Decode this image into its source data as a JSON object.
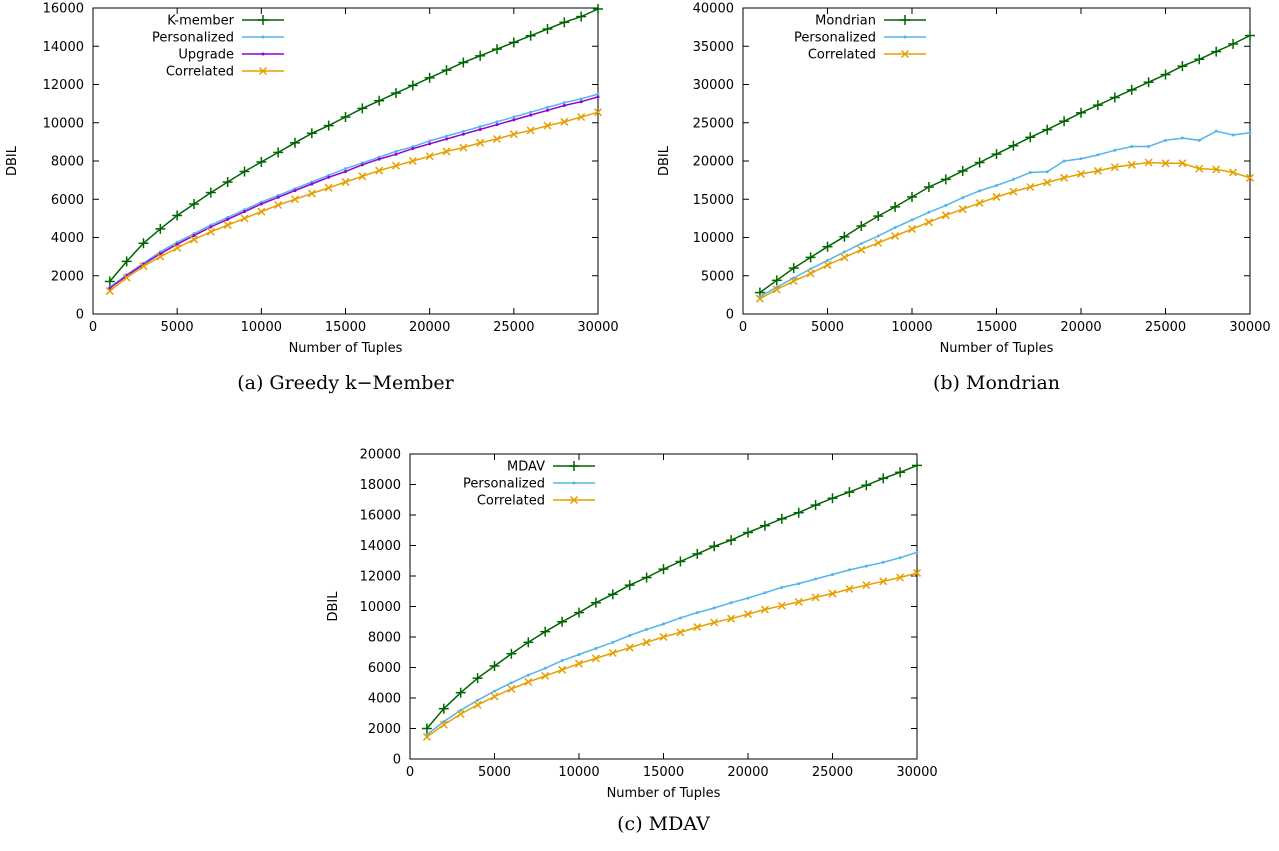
{
  "chart_data": [
    {
      "type": "line",
      "caption": "(a) Greedy k−Member",
      "xlabel": "Number of Tuples",
      "ylabel": "DBIL",
      "xlim": [
        0,
        30000
      ],
      "ylim": [
        0,
        16000
      ],
      "xticks": [
        0,
        5000,
        10000,
        15000,
        20000,
        25000,
        30000
      ],
      "yticks": [
        0,
        2000,
        4000,
        6000,
        8000,
        10000,
        12000,
        14000,
        16000
      ],
      "legend_position": "top-left",
      "x": [
        1000,
        2000,
        3000,
        4000,
        5000,
        6000,
        7000,
        8000,
        9000,
        10000,
        11000,
        12000,
        13000,
        14000,
        15000,
        16000,
        17000,
        18000,
        19000,
        20000,
        21000,
        22000,
        23000,
        24000,
        25000,
        26000,
        27000,
        28000,
        29000,
        30000
      ],
      "series": [
        {
          "name": "K-member",
          "color": "#006400",
          "marker": "plus",
          "values": [
            1700,
            2750,
            3700,
            4450,
            5150,
            5750,
            6350,
            6900,
            7450,
            7950,
            8450,
            8950,
            9450,
            9850,
            10300,
            10750,
            11150,
            11550,
            11950,
            12350,
            12750,
            13150,
            13500,
            13850,
            14200,
            14550,
            14900,
            15250,
            15550,
            15950
          ]
        },
        {
          "name": "Personalized",
          "color": "#56b4e9",
          "marker": "dot",
          "values": [
            1400,
            2050,
            2650,
            3250,
            3750,
            4200,
            4650,
            5050,
            5450,
            5850,
            6200,
            6550,
            6900,
            7250,
            7600,
            7900,
            8200,
            8500,
            8750,
            9050,
            9300,
            9550,
            9800,
            10050,
            10300,
            10550,
            10800,
            11050,
            11250,
            11500
          ]
        },
        {
          "name": "Upgrade",
          "color": "#9400d3",
          "marker": "dot",
          "values": [
            1350,
            2000,
            2600,
            3150,
            3650,
            4100,
            4550,
            4950,
            5350,
            5750,
            6100,
            6450,
            6800,
            7150,
            7450,
            7800,
            8100,
            8350,
            8650,
            8900,
            9150,
            9400,
            9650,
            9900,
            10150,
            10400,
            10650,
            10900,
            11100,
            11350
          ]
        },
        {
          "name": "Correlated",
          "color": "#e69f00",
          "marker": "x",
          "values": [
            1200,
            1900,
            2500,
            3000,
            3450,
            3900,
            4300,
            4650,
            5000,
            5350,
            5700,
            6000,
            6300,
            6600,
            6900,
            7200,
            7500,
            7750,
            8000,
            8250,
            8500,
            8700,
            8950,
            9150,
            9400,
            9600,
            9850,
            10050,
            10300,
            10550
          ]
        }
      ]
    },
    {
      "type": "line",
      "caption": "(b) Mondrian",
      "xlabel": "Number of Tuples",
      "ylabel": "DBIL",
      "xlim": [
        0,
        30000
      ],
      "ylim": [
        0,
        40000
      ],
      "xticks": [
        0,
        5000,
        10000,
        15000,
        20000,
        25000,
        30000
      ],
      "yticks": [
        0,
        5000,
        10000,
        15000,
        20000,
        25000,
        30000,
        35000,
        40000
      ],
      "legend_position": "top-left",
      "x": [
        1000,
        2000,
        3000,
        4000,
        5000,
        6000,
        7000,
        8000,
        9000,
        10000,
        11000,
        12000,
        13000,
        14000,
        15000,
        16000,
        17000,
        18000,
        19000,
        20000,
        21000,
        22000,
        23000,
        24000,
        25000,
        26000,
        27000,
        28000,
        29000,
        30000
      ],
      "series": [
        {
          "name": "Mondrian",
          "color": "#006400",
          "marker": "plus",
          "values": [
            2800,
            4400,
            6000,
            7400,
            8800,
            10100,
            11500,
            12800,
            14000,
            15300,
            16600,
            17600,
            18700,
            19800,
            20900,
            22000,
            23100,
            24100,
            25200,
            26300,
            27300,
            28300,
            29300,
            30300,
            31300,
            32400,
            33300,
            34300,
            35300,
            36400
          ]
        },
        {
          "name": "Personalized",
          "color": "#56b4e9",
          "marker": "dot",
          "values": [
            2300,
            3500,
            4700,
            5900,
            7000,
            8100,
            9200,
            10200,
            11300,
            12300,
            13300,
            14200,
            15200,
            16100,
            16800,
            17600,
            18500,
            18600,
            20000,
            20300,
            20800,
            21400,
            21900,
            21900,
            22700,
            23000,
            22700,
            23900,
            23400,
            23700
          ]
        },
        {
          "name": "Correlated",
          "color": "#e69f00",
          "marker": "x",
          "values": [
            2000,
            3200,
            4300,
            5300,
            6400,
            7400,
            8400,
            9300,
            10200,
            11100,
            12000,
            12900,
            13700,
            14500,
            15300,
            16000,
            16600,
            17200,
            17800,
            18300,
            18700,
            19200,
            19500,
            19800,
            19700,
            19700,
            19000,
            18900,
            18500,
            17800
          ]
        }
      ]
    },
    {
      "type": "line",
      "caption": "(c) MDAV",
      "xlabel": "Number of Tuples",
      "ylabel": "DBIL",
      "xlim": [
        0,
        30000
      ],
      "ylim": [
        0,
        20000
      ],
      "xticks": [
        0,
        5000,
        10000,
        15000,
        20000,
        25000,
        30000
      ],
      "yticks": [
        0,
        2000,
        4000,
        6000,
        8000,
        10000,
        12000,
        14000,
        16000,
        18000,
        20000
      ],
      "legend_position": "top-left",
      "x": [
        1000,
        2000,
        3000,
        4000,
        5000,
        6000,
        7000,
        8000,
        9000,
        10000,
        11000,
        12000,
        13000,
        14000,
        15000,
        16000,
        17000,
        18000,
        19000,
        20000,
        21000,
        22000,
        23000,
        24000,
        25000,
        26000,
        27000,
        28000,
        29000,
        30000
      ],
      "series": [
        {
          "name": "MDAV",
          "color": "#006400",
          "marker": "plus",
          "values": [
            2000,
            3300,
            4350,
            5300,
            6100,
            6900,
            7650,
            8350,
            9000,
            9600,
            10250,
            10800,
            11400,
            11900,
            12450,
            12950,
            13450,
            13950,
            14350,
            14850,
            15300,
            15750,
            16150,
            16650,
            17100,
            17500,
            17950,
            18400,
            18800,
            19250
          ]
        },
        {
          "name": "Personalized",
          "color": "#56b4e9",
          "marker": "dot",
          "values": [
            1600,
            2450,
            3200,
            3850,
            4450,
            5000,
            5500,
            5950,
            6450,
            6850,
            7250,
            7650,
            8100,
            8500,
            8850,
            9250,
            9600,
            9900,
            10250,
            10550,
            10900,
            11250,
            11500,
            11800,
            12100,
            12400,
            12650,
            12900,
            13200,
            13550
          ]
        },
        {
          "name": "Correlated",
          "color": "#e69f00",
          "marker": "x",
          "values": [
            1450,
            2250,
            2950,
            3550,
            4100,
            4600,
            5050,
            5450,
            5850,
            6250,
            6600,
            6950,
            7300,
            7650,
            8000,
            8300,
            8650,
            8950,
            9200,
            9500,
            9800,
            10050,
            10300,
            10600,
            10850,
            11150,
            11400,
            11650,
            11900,
            12200
          ]
        }
      ]
    }
  ]
}
